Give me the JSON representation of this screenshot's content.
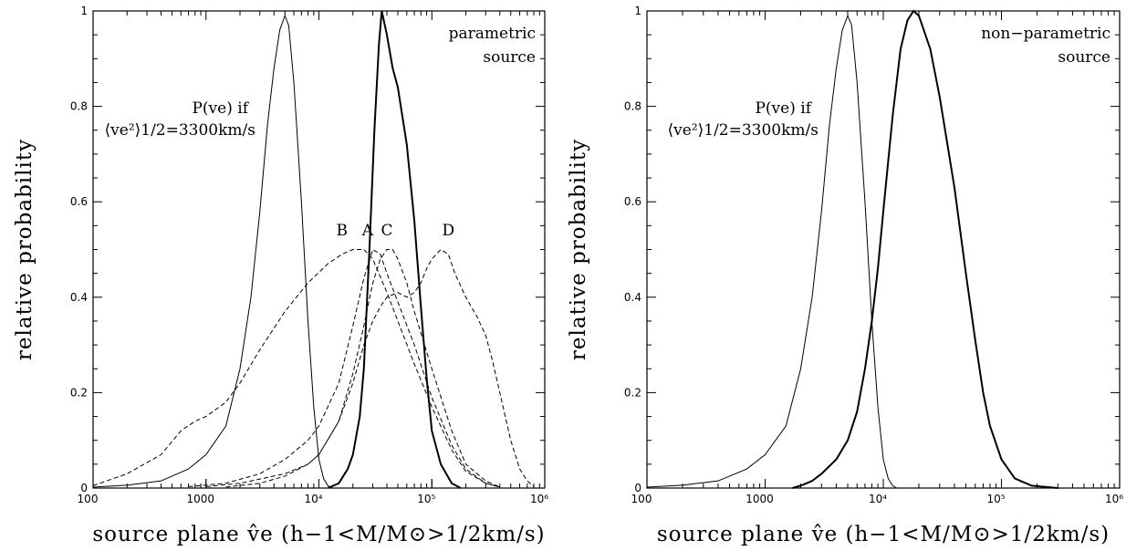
{
  "chart_data": [
    {
      "type": "line",
      "xscale": "log",
      "xlim": [
        100,
        1000000
      ],
      "ylim": [
        0,
        1
      ],
      "grid": false,
      "xlabel": "source plane v̂e (h−1<M/M⊙>1/2km/s)",
      "ylabel": "relative probability",
      "x_tick_labels": [
        "100",
        "1000",
        "10⁴",
        "10⁵",
        "10⁶"
      ],
      "y_tick_labels": [
        "0",
        "0.2",
        "0.4",
        "0.6",
        "0.8",
        "1"
      ],
      "annotations": {
        "corner": [
          "parametric",
          "source"
        ],
        "pve_line1": "P(ve) if",
        "pve_line2": "⟨ve²⟩1/2=3300km/s"
      },
      "series": [
        {
          "name": "",
          "style": "thin-solid",
          "points": [
            [
              100,
              0.002
            ],
            [
              200,
              0.006
            ],
            [
              400,
              0.015
            ],
            [
              700,
              0.04
            ],
            [
              1000,
              0.07
            ],
            [
              1500,
              0.13
            ],
            [
              2000,
              0.25
            ],
            [
              2500,
              0.4
            ],
            [
              3000,
              0.58
            ],
            [
              3500,
              0.76
            ],
            [
              4000,
              0.88
            ],
            [
              4500,
              0.96
            ],
            [
              5000,
              0.99
            ],
            [
              5400,
              0.97
            ],
            [
              6000,
              0.85
            ],
            [
              7000,
              0.6
            ],
            [
              8000,
              0.35
            ],
            [
              9000,
              0.17
            ],
            [
              10000,
              0.06
            ],
            [
              11000,
              0.02
            ],
            [
              12000,
              0.005
            ],
            [
              13000,
              0
            ]
          ]
        },
        {
          "name": "",
          "style": "thick-solid",
          "points": [
            [
              12000,
              0
            ],
            [
              15000,
              0.01
            ],
            [
              18000,
              0.04
            ],
            [
              20000,
              0.07
            ],
            [
              23000,
              0.15
            ],
            [
              25000,
              0.25
            ],
            [
              28000,
              0.5
            ],
            [
              31000,
              0.75
            ],
            [
              34000,
              0.93
            ],
            [
              36000,
              1.0
            ],
            [
              40000,
              0.95
            ],
            [
              45000,
              0.88
            ],
            [
              50000,
              0.84
            ],
            [
              60000,
              0.72
            ],
            [
              70000,
              0.56
            ],
            [
              80000,
              0.38
            ],
            [
              90000,
              0.23
            ],
            [
              100000,
              0.12
            ],
            [
              120000,
              0.05
            ],
            [
              150000,
              0.01
            ],
            [
              180000,
              0
            ]
          ]
        },
        {
          "name": "B",
          "style": "dashed",
          "points": [
            [
              100,
              0.005
            ],
            [
              200,
              0.03
            ],
            [
              400,
              0.07
            ],
            [
              600,
              0.12
            ],
            [
              800,
              0.14
            ],
            [
              1000,
              0.15
            ],
            [
              1500,
              0.18
            ],
            [
              2000,
              0.22
            ],
            [
              3000,
              0.29
            ],
            [
              5000,
              0.37
            ],
            [
              8000,
              0.43
            ],
            [
              12000,
              0.47
            ],
            [
              16000,
              0.49
            ],
            [
              20000,
              0.5
            ],
            [
              25000,
              0.5
            ],
            [
              30000,
              0.48
            ],
            [
              40000,
              0.41
            ],
            [
              50000,
              0.35
            ],
            [
              70000,
              0.26
            ],
            [
              100000,
              0.17
            ],
            [
              150000,
              0.08
            ],
            [
              200000,
              0.035
            ],
            [
              300000,
              0.01
            ],
            [
              400000,
              0.002
            ]
          ]
        },
        {
          "name": "A",
          "style": "dashed",
          "points": [
            [
              700,
              0.003
            ],
            [
              1500,
              0.01
            ],
            [
              3000,
              0.03
            ],
            [
              5000,
              0.06
            ],
            [
              8000,
              0.1
            ],
            [
              10000,
              0.13
            ],
            [
              15000,
              0.22
            ],
            [
              20000,
              0.34
            ],
            [
              25000,
              0.44
            ],
            [
              30000,
              0.5
            ],
            [
              35000,
              0.49
            ],
            [
              40000,
              0.45
            ],
            [
              50000,
              0.39
            ],
            [
              70000,
              0.3
            ],
            [
              100000,
              0.19
            ],
            [
              150000,
              0.09
            ],
            [
              200000,
              0.04
            ],
            [
              300000,
              0.01
            ],
            [
              400000,
              0.002
            ]
          ]
        },
        {
          "name": "C",
          "style": "dashed",
          "points": [
            [
              1000,
              0.003
            ],
            [
              2000,
              0.01
            ],
            [
              5000,
              0.03
            ],
            [
              8000,
              0.05
            ],
            [
              10000,
              0.07
            ],
            [
              15000,
              0.14
            ],
            [
              20000,
              0.24
            ],
            [
              25000,
              0.34
            ],
            [
              30000,
              0.43
            ],
            [
              35000,
              0.48
            ],
            [
              40000,
              0.5
            ],
            [
              45000,
              0.5
            ],
            [
              50000,
              0.48
            ],
            [
              60000,
              0.43
            ],
            [
              70000,
              0.37
            ],
            [
              100000,
              0.25
            ],
            [
              150000,
              0.12
            ],
            [
              200000,
              0.05
            ],
            [
              300000,
              0.015
            ],
            [
              400000,
              0.002
            ]
          ]
        },
        {
          "name": "D",
          "style": "dashed",
          "points": [
            [
              1500,
              0.002
            ],
            [
              3000,
              0.01
            ],
            [
              5000,
              0.025
            ],
            [
              8000,
              0.05
            ],
            [
              10000,
              0.07
            ],
            [
              15000,
              0.14
            ],
            [
              20000,
              0.22
            ],
            [
              25000,
              0.3
            ],
            [
              30000,
              0.35
            ],
            [
              35000,
              0.38
            ],
            [
              40000,
              0.4
            ],
            [
              50000,
              0.41
            ],
            [
              60000,
              0.4
            ],
            [
              70000,
              0.41
            ],
            [
              80000,
              0.43
            ],
            [
              90000,
              0.46
            ],
            [
              100000,
              0.48
            ],
            [
              120000,
              0.5
            ],
            [
              140000,
              0.49
            ],
            [
              160000,
              0.45
            ],
            [
              200000,
              0.4
            ],
            [
              250000,
              0.36
            ],
            [
              300000,
              0.32
            ],
            [
              350000,
              0.26
            ],
            [
              400000,
              0.2
            ],
            [
              500000,
              0.1
            ],
            [
              600000,
              0.04
            ],
            [
              700000,
              0.015
            ],
            [
              800000,
              0.003
            ]
          ]
        }
      ],
      "curve_labels": [
        {
          "text": "B",
          "x": 16000,
          "y": 0.53
        },
        {
          "text": "A",
          "x": 27000,
          "y": 0.53
        },
        {
          "text": "C",
          "x": 40000,
          "y": 0.53
        },
        {
          "text": "D",
          "x": 140000,
          "y": 0.53
        }
      ]
    },
    {
      "type": "line",
      "xscale": "log",
      "xlim": [
        100,
        1000000
      ],
      "ylim": [
        0,
        1
      ],
      "grid": false,
      "xlabel": "source plane v̂e (h−1<M/M⊙>1/2km/s)",
      "ylabel": "relative probability",
      "x_tick_labels": [
        "100",
        "1000",
        "10⁴",
        "10⁵",
        "10⁶"
      ],
      "y_tick_labels": [
        "0",
        "0.2",
        "0.4",
        "0.6",
        "0.8",
        "1"
      ],
      "annotations": {
        "corner": [
          "non−parametric",
          "source"
        ],
        "pve_line1": "P(ve) if",
        "pve_line2": "⟨ve²⟩1/2=3300km/s"
      },
      "series": [
        {
          "name": "",
          "style": "thin-solid",
          "points": [
            [
              100,
              0.002
            ],
            [
              200,
              0.006
            ],
            [
              400,
              0.015
            ],
            [
              700,
              0.04
            ],
            [
              1000,
              0.07
            ],
            [
              1500,
              0.13
            ],
            [
              2000,
              0.25
            ],
            [
              2500,
              0.4
            ],
            [
              3000,
              0.58
            ],
            [
              3500,
              0.76
            ],
            [
              4000,
              0.88
            ],
            [
              4500,
              0.96
            ],
            [
              5000,
              0.99
            ],
            [
              5400,
              0.97
            ],
            [
              6000,
              0.85
            ],
            [
              7000,
              0.6
            ],
            [
              8000,
              0.35
            ],
            [
              9000,
              0.17
            ],
            [
              10000,
              0.06
            ],
            [
              11000,
              0.02
            ],
            [
              12000,
              0.005
            ],
            [
              13000,
              0
            ]
          ]
        },
        {
          "name": "",
          "style": "thick-solid",
          "points": [
            [
              1700,
              0
            ],
            [
              2000,
              0.005
            ],
            [
              2500,
              0.015
            ],
            [
              3000,
              0.03
            ],
            [
              4000,
              0.06
            ],
            [
              5000,
              0.1
            ],
            [
              6000,
              0.16
            ],
            [
              7000,
              0.25
            ],
            [
              8000,
              0.35
            ],
            [
              9000,
              0.46
            ],
            [
              10000,
              0.58
            ],
            [
              12000,
              0.78
            ],
            [
              14000,
              0.92
            ],
            [
              16000,
              0.98
            ],
            [
              18000,
              1.0
            ],
            [
              20000,
              0.99
            ],
            [
              25000,
              0.92
            ],
            [
              30000,
              0.82
            ],
            [
              40000,
              0.63
            ],
            [
              50000,
              0.45
            ],
            [
              60000,
              0.31
            ],
            [
              70000,
              0.2
            ],
            [
              80000,
              0.13
            ],
            [
              100000,
              0.06
            ],
            [
              130000,
              0.02
            ],
            [
              180000,
              0.005
            ],
            [
              300000,
              0
            ]
          ]
        }
      ]
    }
  ]
}
